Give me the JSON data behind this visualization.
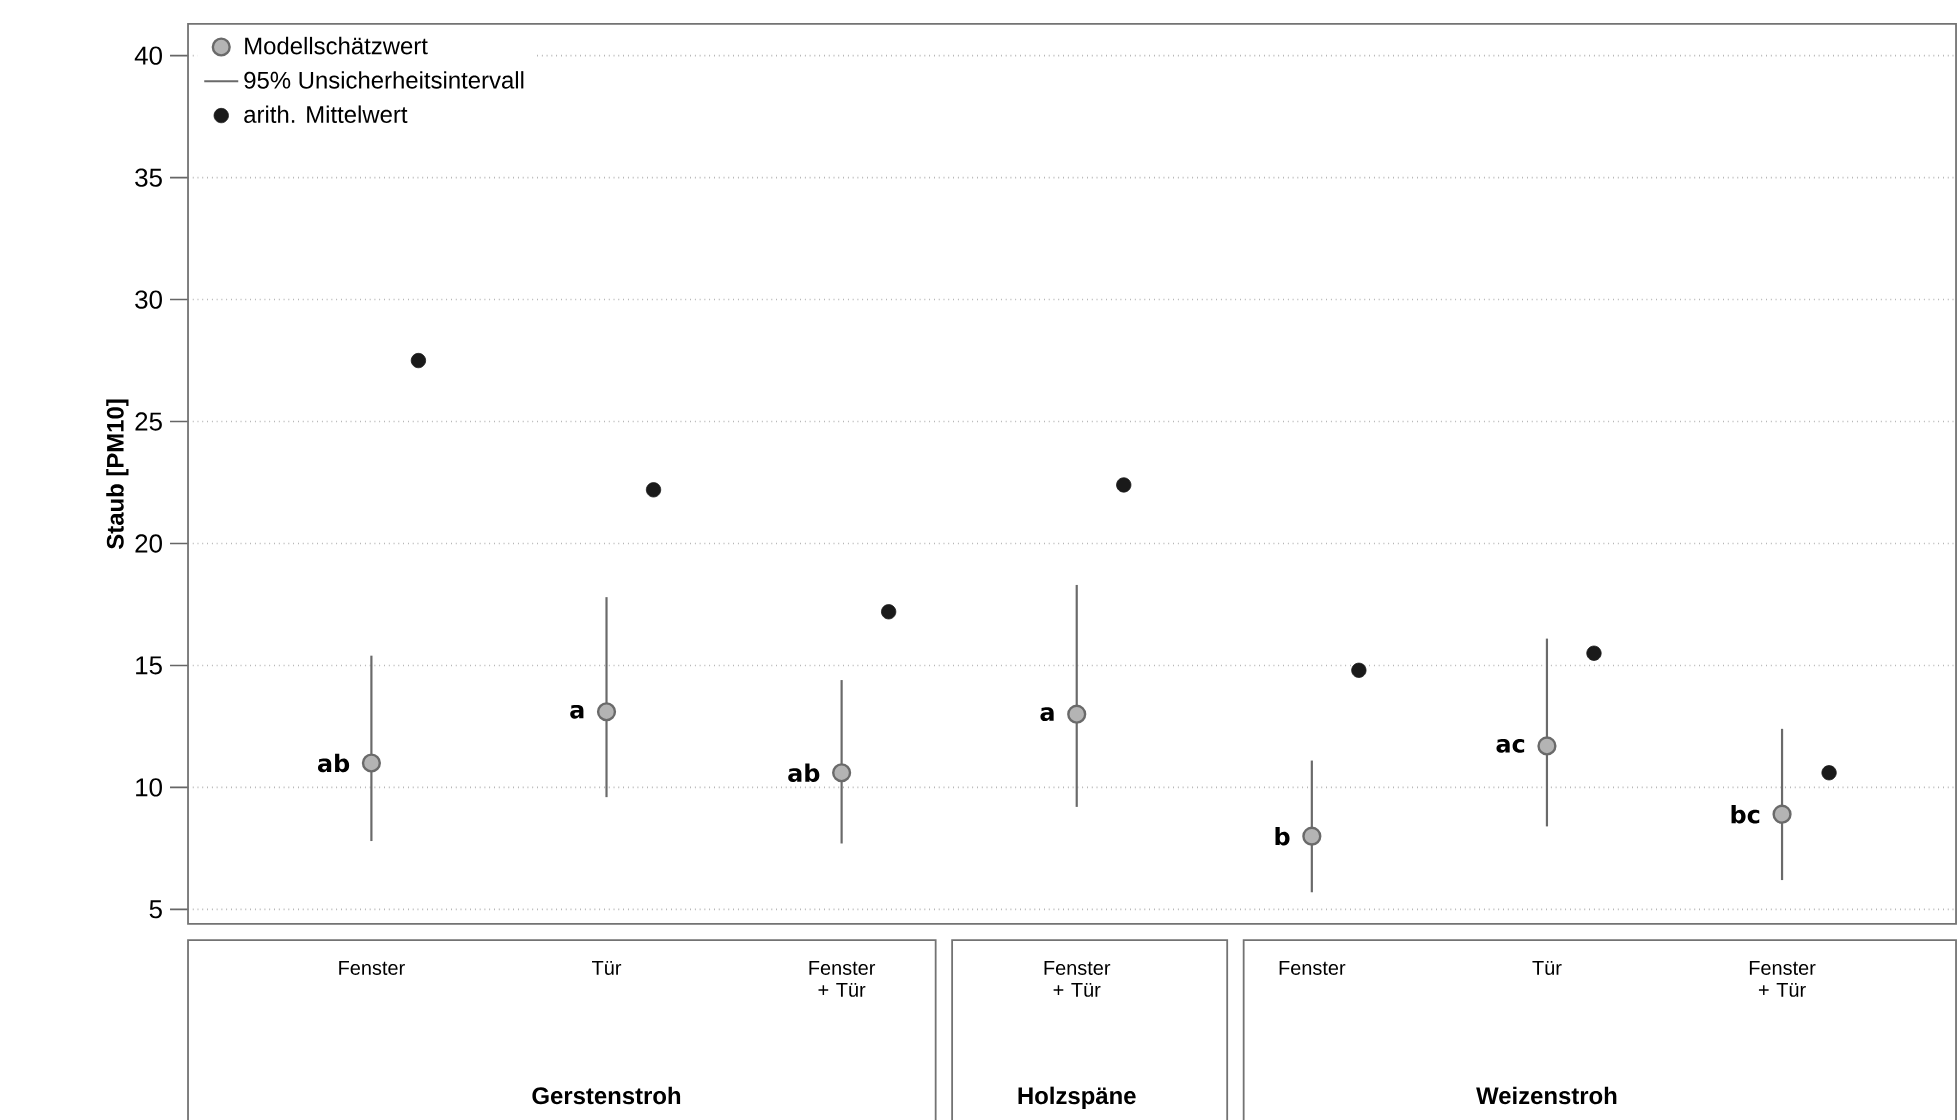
{
  "chart_data": {
    "type": "scatter",
    "ylabel": "Staub [PM10]",
    "categories": [
      "Fenster",
      "Tür",
      "Fenster + Tür",
      "Fenster + Tür",
      "Fenster",
      "Tür",
      "Fenster + Tür"
    ],
    "ylim": [
      4.4,
      41.3
    ],
    "yticks": [
      5,
      10,
      15,
      20,
      25,
      30,
      35,
      40
    ],
    "grid": "y",
    "legend": "top left",
    "series": [
      {
        "name": "Modellschätzwert",
        "color": "#b4b4b4",
        "values": [
          11.0,
          13.1,
          10.6,
          13.0,
          8.0,
          11.7,
          8.9
        ],
        "errors": [
          [
            7.8,
            15.4
          ],
          [
            9.6,
            17.8
          ],
          [
            7.7,
            14.4
          ],
          [
            9.2,
            18.3
          ],
          [
            5.7,
            11.1
          ],
          [
            8.4,
            16.1
          ],
          [
            6.2,
            12.4
          ]
        ],
        "value_labels": [
          "ab",
          "a",
          "ab",
          "a",
          "b",
          "ac",
          "bc"
        ]
      },
      {
        "name": "arith. Mittelwert",
        "color": "#1a1a1a",
        "values": [
          27.5,
          22.2,
          17.2,
          22.4,
          14.8,
          15.5,
          10.6
        ]
      }
    ],
    "annotations": [
      "95% Unsicherheitsintervall",
      "Gerstenstroh",
      "Holzspäne",
      "Weizenstroh"
    ]
  }
}
